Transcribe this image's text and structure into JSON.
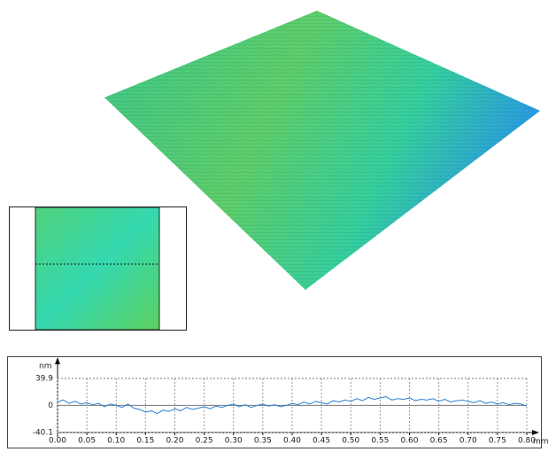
{
  "chart_data": {
    "type": "line",
    "y_label": "nm",
    "x_label": "mm",
    "x": [
      0,
      0.01,
      0.02,
      0.03,
      0.04,
      0.05,
      0.06,
      0.07,
      0.08,
      0.09,
      0.1,
      0.11,
      0.12,
      0.13,
      0.14,
      0.15,
      0.16,
      0.17,
      0.18,
      0.19,
      0.2,
      0.21,
      0.22,
      0.23,
      0.24,
      0.25,
      0.26,
      0.27,
      0.28,
      0.29,
      0.3,
      0.31,
      0.32,
      0.33,
      0.34,
      0.35,
      0.36,
      0.37,
      0.38,
      0.39,
      0.4,
      0.41,
      0.42,
      0.43,
      0.44,
      0.45,
      0.46,
      0.47,
      0.48,
      0.49,
      0.5,
      0.51,
      0.52,
      0.53,
      0.54,
      0.55,
      0.56,
      0.57,
      0.58,
      0.59,
      0.6,
      0.61,
      0.62,
      0.63,
      0.64,
      0.65,
      0.66,
      0.67,
      0.68,
      0.69,
      0.7,
      0.71,
      0.72,
      0.73,
      0.74,
      0.75,
      0.76,
      0.77,
      0.78,
      0.79,
      0.8
    ],
    "series": [
      {
        "color": "#2a7fd4",
        "values": [
          5,
          8,
          3,
          6,
          2,
          4,
          1,
          3,
          -2,
          2,
          0,
          -3,
          2,
          -4,
          -6,
          -10,
          -8,
          -12,
          -7,
          -9,
          -5,
          -8,
          -3,
          -6,
          -4,
          -2,
          -5,
          -1,
          -3,
          0,
          2,
          -2,
          1,
          -3,
          0,
          2,
          -1,
          1,
          -2,
          0,
          3,
          1,
          5,
          2,
          6,
          4,
          2,
          7,
          5,
          8,
          6,
          10,
          7,
          12,
          9,
          11,
          13,
          8,
          10,
          9,
          11,
          7,
          9,
          8,
          10,
          6,
          9,
          5,
          7,
          8,
          6,
          4,
          7,
          3,
          5,
          2,
          4,
          1,
          3,
          2,
          -1
        ]
      }
    ],
    "xlim": [
      0,
      0.8
    ],
    "ylim": [
      -40.1,
      39.9
    ],
    "xticks": [
      {
        "value": 0,
        "label": "0.00"
      },
      {
        "value": 0.05,
        "label": "0.05"
      },
      {
        "value": 0.1,
        "label": "0.10"
      },
      {
        "value": 0.15,
        "label": "0.15"
      },
      {
        "value": 0.2,
        "label": "0.20"
      },
      {
        "value": 0.25,
        "label": "0.25"
      },
      {
        "value": 0.3,
        "label": "0.30"
      },
      {
        "value": 0.35,
        "label": "0.35"
      },
      {
        "value": 0.4,
        "label": "0.40"
      },
      {
        "value": 0.45,
        "label": "0.45"
      },
      {
        "value": 0.5,
        "label": "0.50"
      },
      {
        "value": 0.55,
        "label": "0.55"
      },
      {
        "value": 0.6,
        "label": "0.60"
      },
      {
        "value": 0.65,
        "label": "0.65"
      },
      {
        "value": 0.7,
        "label": "0.70"
      },
      {
        "value": 0.75,
        "label": "0.75"
      },
      {
        "value": 0.8,
        "label": "0.80"
      }
    ],
    "yticks": [
      39.9,
      0,
      -40.1
    ],
    "grid": true
  }
}
